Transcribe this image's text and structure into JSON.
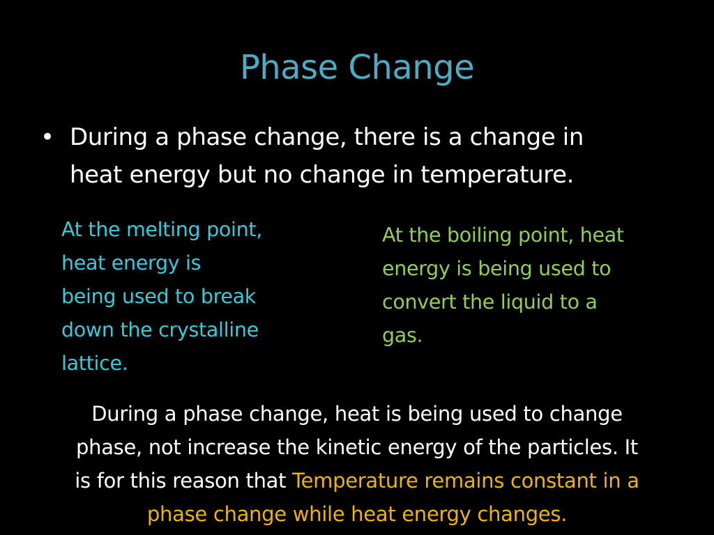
{
  "colors": {
    "background": "#000000",
    "title": "#4bacc6",
    "body_text": "#ffffff",
    "melting_text": "#33ccdd",
    "boiling_text": "#92d050",
    "highlight": "#f0b400"
  },
  "title": "Phase Change",
  "bullet": {
    "marker": "•",
    "lines": [
      "During a phase change, there is a change in",
      "heat energy but no change in temperature."
    ]
  },
  "melting_box": {
    "lines": [
      "At the melting point,",
      "heat energy is",
      "being used to break",
      "down the crystalline",
      "lattice."
    ]
  },
  "boiling_box": {
    "lines": [
      "At the boiling point, heat",
      "energy is being used to",
      "convert the liquid to a",
      "gas."
    ]
  },
  "summary": {
    "line1": "During a phase change, heat is being used to change",
    "line2": "phase, not increase the kinetic energy of the particles. It",
    "line3_plain": "is for this reason that ",
    "line3_highlight": "Temperature remains constant in a",
    "line4_highlight": "phase change while heat energy changes."
  }
}
